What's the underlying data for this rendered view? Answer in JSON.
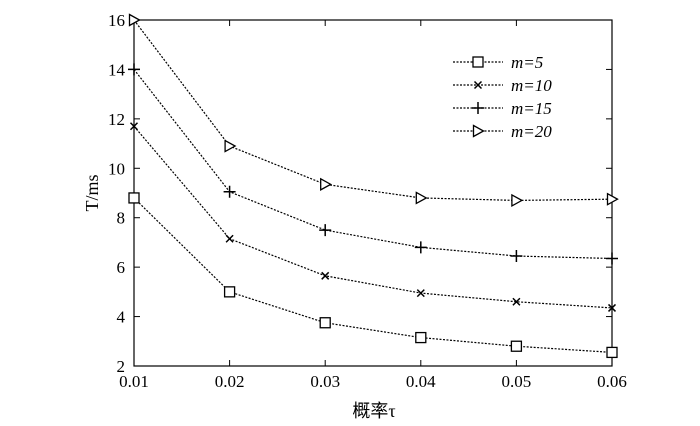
{
  "chart_data": {
    "type": "line",
    "title": "",
    "xlabel": "概率τ",
    "ylabel": "T/ms",
    "x": [
      0.01,
      0.02,
      0.03,
      0.04,
      0.05,
      0.06
    ],
    "x_tick_labels": [
      "0.01",
      "0.02",
      "0.03",
      "0.04",
      "0.05",
      "0.06"
    ],
    "y_tick_labels": [
      "2",
      "4",
      "6",
      "8",
      "10",
      "12",
      "14",
      "16"
    ],
    "xlim": [
      0.01,
      0.06
    ],
    "ylim": [
      2,
      16
    ],
    "grid": false,
    "legend_position": "top-right",
    "series": [
      {
        "name": "m=5",
        "marker": "square",
        "values": [
          8.8,
          5.0,
          3.75,
          3.15,
          2.8,
          2.55
        ]
      },
      {
        "name": "m=10",
        "marker": "x",
        "values": [
          11.7,
          7.15,
          5.65,
          4.95,
          4.6,
          4.35
        ]
      },
      {
        "name": "m=15",
        "marker": "plus",
        "values": [
          14.0,
          9.05,
          7.5,
          6.8,
          6.45,
          6.35
        ]
      },
      {
        "name": "m=20",
        "marker": "triangle-right",
        "values": [
          16.0,
          10.9,
          9.35,
          8.8,
          8.7,
          8.75
        ]
      }
    ]
  }
}
